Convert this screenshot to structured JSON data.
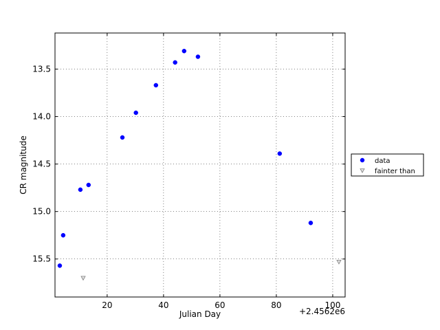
{
  "chart_data": {
    "type": "scatter",
    "x_label": "Julian Day",
    "y_label": "CR magnitude",
    "x_offset_label": "+2.4562e6",
    "xlim": [
      1.5,
      104.4
    ],
    "ylim": [
      13.12,
      15.9
    ],
    "invert_y": true,
    "xticks": [
      20,
      40,
      60,
      80,
      100
    ],
    "yticks": [
      {
        "value": 13.5,
        "label": "13.5"
      },
      {
        "value": 14.0,
        "label": "14.0"
      },
      {
        "value": 14.5,
        "label": "14.5"
      },
      {
        "value": 15.0,
        "label": "15.0"
      },
      {
        "value": 15.5,
        "label": "15.5"
      }
    ],
    "grid": true,
    "legend": "outside right",
    "series": [
      {
        "name": "data",
        "color": "#0000ff",
        "marker": "circle",
        "x": [
          3.2,
          4.4,
          10.5,
          13.4,
          25.4,
          30.2,
          37.3,
          44.1,
          47.3,
          52.2,
          81.2,
          92.2
        ],
        "values": [
          15.57,
          15.25,
          14.77,
          14.72,
          14.22,
          13.96,
          13.67,
          13.43,
          13.31,
          13.37,
          14.39,
          15.12
        ]
      },
      {
        "name": "fainter than",
        "color": "#808080",
        "marker": "triangle-down",
        "x": [
          11.5,
          102.2
        ],
        "values": [
          15.7,
          15.53
        ]
      }
    ]
  }
}
